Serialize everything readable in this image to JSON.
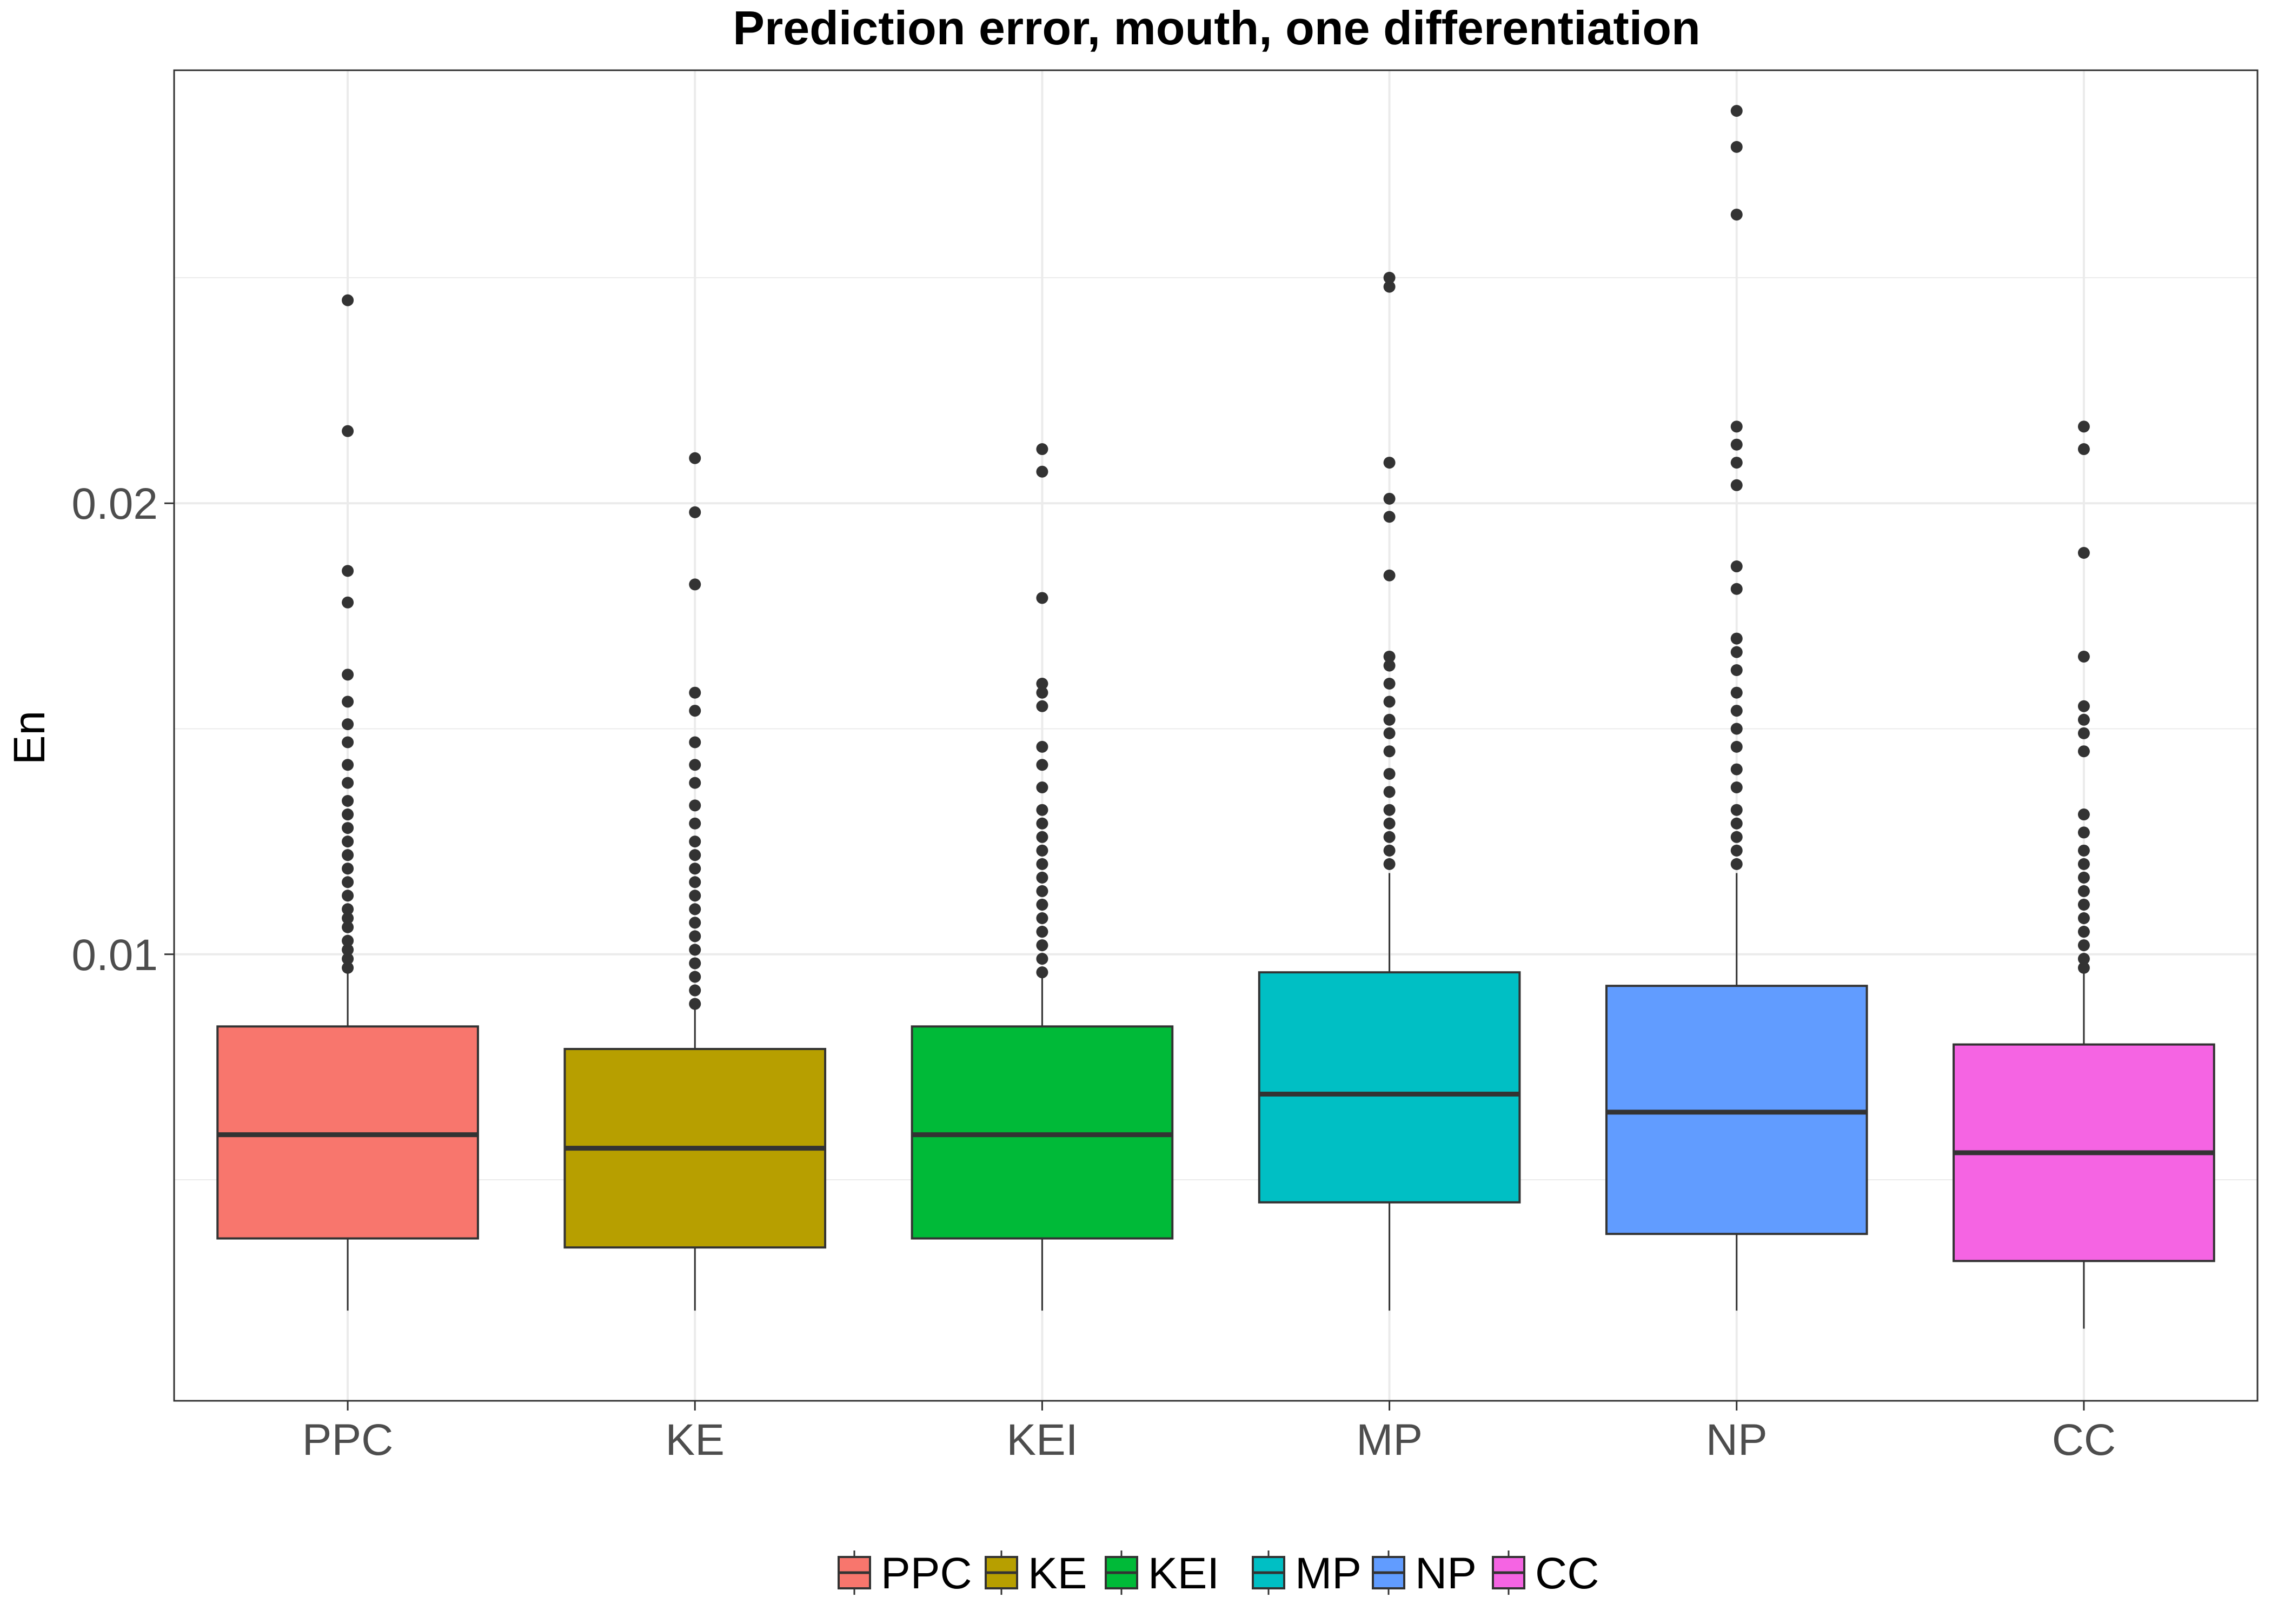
{
  "chart_data": {
    "type": "box",
    "title": "Prediction error, mouth, one differentiation",
    "xlabel": "",
    "ylabel": "En",
    "ylim": [
      0.0001,
      0.0296
    ],
    "yticks": [
      0.01,
      0.02
    ],
    "ytick_labels": [
      "0.01",
      "0.02"
    ],
    "grid": true,
    "legend_position": "bottom",
    "categories": [
      "PPC",
      "KE",
      "KEI",
      "MP",
      "NP",
      "CC"
    ],
    "series": [
      {
        "name": "PPC",
        "color": "#F8766D",
        "whisker_low": 0.0021,
        "q1": 0.0037,
        "median": 0.006,
        "q3": 0.0084,
        "whisker_high": 0.0096,
        "outliers": [
          0.0097,
          0.0099,
          0.0101,
          0.0103,
          0.0106,
          0.0108,
          0.011,
          0.0113,
          0.0116,
          0.0119,
          0.0122,
          0.0125,
          0.0128,
          0.0131,
          0.0134,
          0.0138,
          0.0142,
          0.0147,
          0.0151,
          0.0156,
          0.0162,
          0.0178,
          0.0185,
          0.0216,
          0.0245
        ]
      },
      {
        "name": "KE",
        "color": "#B79F00",
        "whisker_low": 0.0021,
        "q1": 0.0035,
        "median": 0.0057,
        "q3": 0.0079,
        "whisker_high": 0.0088,
        "outliers": [
          0.0089,
          0.0092,
          0.0095,
          0.0098,
          0.0101,
          0.0104,
          0.0107,
          0.011,
          0.0113,
          0.0116,
          0.0119,
          0.0122,
          0.0125,
          0.0129,
          0.0133,
          0.0138,
          0.0142,
          0.0147,
          0.0154,
          0.0158,
          0.0182,
          0.0198,
          0.021
        ]
      },
      {
        "name": "KEI",
        "color": "#00BA38",
        "whisker_low": 0.0021,
        "q1": 0.0037,
        "median": 0.006,
        "q3": 0.0084,
        "whisker_high": 0.0095,
        "outliers": [
          0.0096,
          0.0099,
          0.0102,
          0.0105,
          0.0108,
          0.0111,
          0.0114,
          0.0117,
          0.012,
          0.0123,
          0.0126,
          0.0129,
          0.0132,
          0.0137,
          0.0142,
          0.0146,
          0.0155,
          0.0158,
          0.016,
          0.0179,
          0.0207,
          0.0212
        ]
      },
      {
        "name": "MP",
        "color": "#00BFC4",
        "whisker_low": 0.0021,
        "q1": 0.0045,
        "median": 0.0069,
        "q3": 0.0096,
        "whisker_high": 0.0118,
        "outliers": [
          0.012,
          0.0123,
          0.0126,
          0.0129,
          0.0132,
          0.0136,
          0.014,
          0.0145,
          0.0149,
          0.0152,
          0.0156,
          0.016,
          0.0164,
          0.0166,
          0.0184,
          0.0197,
          0.0201,
          0.0209,
          0.0248,
          0.025
        ]
      },
      {
        "name": "NP",
        "color": "#619CFF",
        "whisker_low": 0.0021,
        "q1": 0.0038,
        "median": 0.0065,
        "q3": 0.0093,
        "whisker_high": 0.0118,
        "outliers": [
          0.012,
          0.0123,
          0.0126,
          0.0129,
          0.0132,
          0.0137,
          0.0141,
          0.0146,
          0.015,
          0.0154,
          0.0158,
          0.0163,
          0.0167,
          0.017,
          0.0181,
          0.0186,
          0.0204,
          0.0209,
          0.0213,
          0.0217,
          0.0264,
          0.0279,
          0.0287
        ]
      },
      {
        "name": "CC",
        "color": "#F564E3",
        "whisker_low": 0.0017,
        "q1": 0.0032,
        "median": 0.0056,
        "q3": 0.008,
        "whisker_high": 0.0096,
        "outliers": [
          0.0097,
          0.0099,
          0.0102,
          0.0105,
          0.0108,
          0.0111,
          0.0114,
          0.0117,
          0.012,
          0.0123,
          0.0127,
          0.0131,
          0.0145,
          0.0149,
          0.0152,
          0.0155,
          0.0166,
          0.0189,
          0.0212,
          0.0217
        ]
      }
    ]
  }
}
